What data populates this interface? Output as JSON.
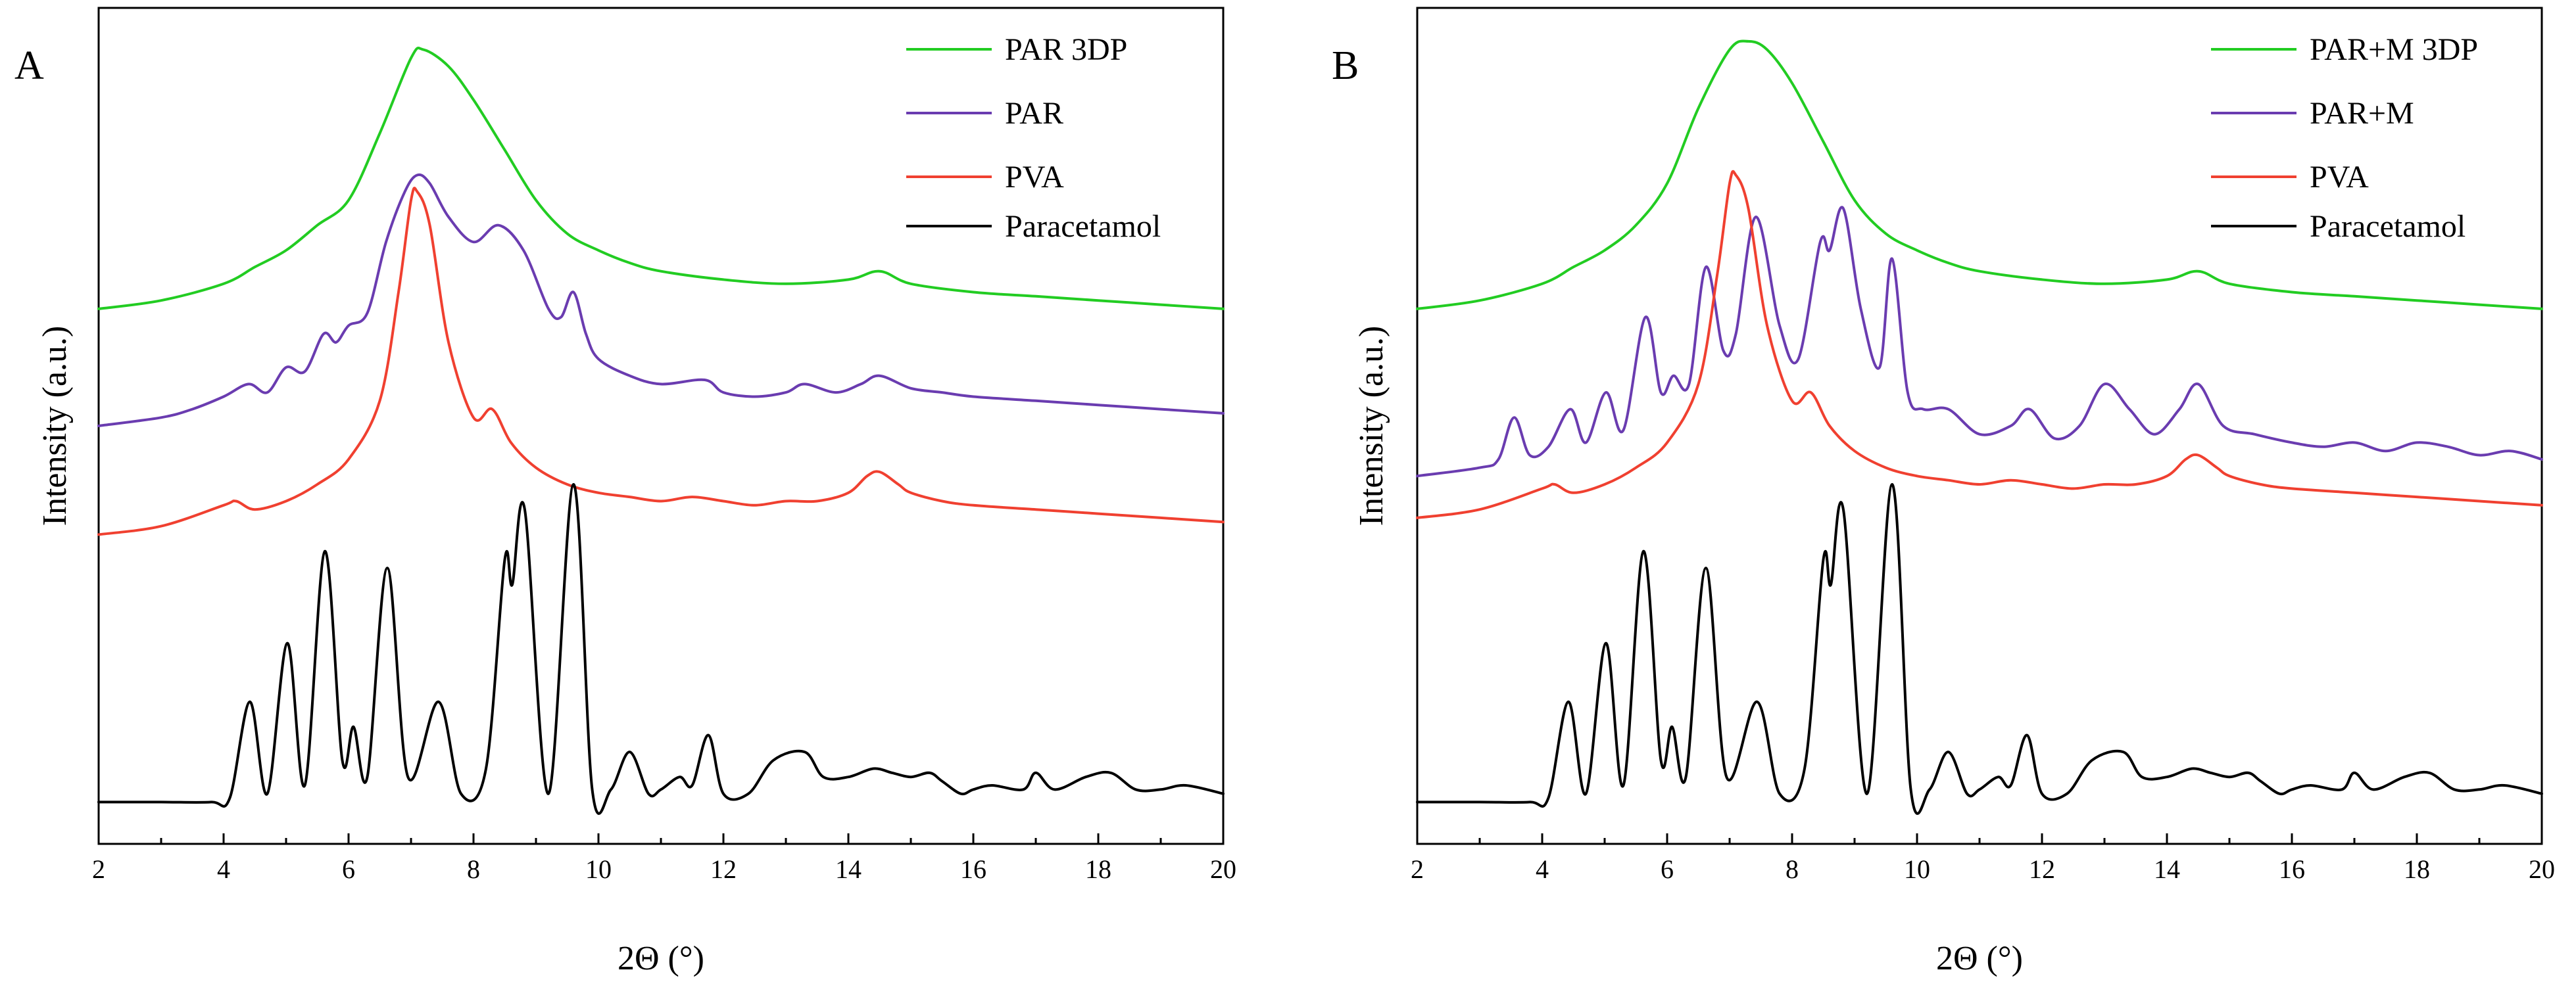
{
  "chart_data": [
    {
      "panel": "A",
      "type": "line",
      "xlabel": "2Θ (°)",
      "ylabel": "Intensity (a.u.)",
      "xlim": [
        2,
        20
      ],
      "ylim": [
        0,
        100
      ],
      "xticks": [
        2,
        4,
        6,
        8,
        10,
        12,
        14,
        16,
        18,
        20
      ],
      "y_ticks_shown": false,
      "legend_position": "top-right",
      "series": [
        {
          "name": "PAR 3DP",
          "color": "#22cc22",
          "x": [
            2,
            3,
            4,
            4.5,
            5,
            5.5,
            6,
            6.5,
            7,
            7.2,
            7.6,
            8,
            8.5,
            9,
            9.5,
            10,
            10.5,
            11,
            12,
            13,
            14,
            14.5,
            15,
            16,
            17,
            18,
            19,
            20
          ],
          "y": [
            64,
            65,
            67,
            69,
            71,
            74,
            77,
            85,
            94,
            95,
            93,
            89,
            83,
            77,
            73,
            71,
            69.5,
            68.5,
            67.5,
            67,
            67.5,
            68.5,
            67,
            66,
            65.5,
            65,
            64.5,
            64
          ]
        },
        {
          "name": "PAR",
          "color": "#6a3cb0",
          "x": [
            2,
            3,
            3.5,
            4,
            4.4,
            4.7,
            5,
            5.3,
            5.6,
            5.8,
            6,
            6.3,
            6.6,
            6.9,
            7.1,
            7.3,
            7.6,
            8,
            8.4,
            8.8,
            9.2,
            9.4,
            9.6,
            9.8,
            10,
            10.5,
            11,
            11.7,
            12,
            12.5,
            13,
            13.3,
            13.8,
            14.2,
            14.5,
            15,
            15.5,
            16,
            17,
            18,
            19,
            20
          ],
          "y": [
            50,
            51,
            52,
            53.5,
            55,
            54,
            57,
            56.5,
            61,
            60,
            62,
            63.5,
            72,
            78,
            80,
            79,
            75,
            72,
            74,
            71,
            64,
            63,
            66,
            61,
            58,
            56,
            55,
            55.5,
            54,
            53.5,
            54,
            55,
            54,
            55,
            56,
            54.5,
            54,
            53.5,
            53,
            52.5,
            52,
            51.5
          ]
        },
        {
          "name": "PVA",
          "color": "#f04030",
          "x": [
            2,
            3,
            4,
            4.2,
            4.5,
            5,
            5.5,
            6,
            6.5,
            6.8,
            7,
            7.1,
            7.3,
            7.6,
            8,
            8.3,
            8.6,
            9,
            9.5,
            10,
            10.5,
            11,
            11.5,
            12,
            12.5,
            13,
            13.5,
            14,
            14.3,
            14.5,
            14.8,
            15,
            15.5,
            16,
            17,
            18,
            19,
            20
          ],
          "y": [
            37,
            38,
            40.5,
            41,
            40,
            41,
            43,
            46,
            53,
            66,
            77,
            78,
            74,
            60,
            51,
            52,
            48,
            45,
            43,
            42,
            41.5,
            41,
            41.5,
            41,
            40.5,
            41,
            41,
            42,
            44,
            44.5,
            43,
            42,
            41,
            40.5,
            40,
            39.5,
            39,
            38.5
          ]
        },
        {
          "name": "Paracetamol",
          "color": "#000000",
          "x": [
            2,
            3,
            3.8,
            4.1,
            4.42,
            4.7,
            5.02,
            5.3,
            5.62,
            5.9,
            6.08,
            6.3,
            6.62,
            6.95,
            7.44,
            7.8,
            8.2,
            8.5,
            8.62,
            8.82,
            9.2,
            9.6,
            9.9,
            10.2,
            10.5,
            10.8,
            11,
            11.3,
            11.5,
            11.76,
            12,
            12.4,
            12.8,
            13.3,
            13.6,
            14,
            14.4,
            14.7,
            15,
            15.3,
            15.5,
            15.8,
            16,
            16.3,
            16.8,
            17,
            17.3,
            17.8,
            18.2,
            18.6,
            19,
            19.4,
            20
          ],
          "y": [
            5,
            5,
            5,
            5.5,
            17,
            6,
            24,
            7,
            35,
            10,
            14,
            8,
            33,
            8,
            17,
            6,
            9,
            34,
            31,
            40,
            6,
            43,
            6.5,
            6.5,
            11,
            6,
            6.5,
            8,
            7,
            13,
            6,
            6,
            10,
            11,
            8,
            8,
            9,
            8.5,
            8,
            8.5,
            7.5,
            6,
            6.5,
            7,
            6.5,
            8.5,
            6.5,
            8,
            8.5,
            6.5,
            6.5,
            7,
            6
          ]
        }
      ]
    },
    {
      "panel": "B",
      "type": "line",
      "xlabel": "2Θ (°)",
      "ylabel": "Intensity (a.u.)",
      "xlim": [
        2,
        20
      ],
      "ylim": [
        0,
        100
      ],
      "xticks": [
        2,
        4,
        6,
        8,
        10,
        12,
        14,
        16,
        18,
        20
      ],
      "y_ticks_shown": false,
      "legend_position": "top-right",
      "series": [
        {
          "name": "PAR+M 3DP",
          "color": "#22cc22",
          "x": [
            2,
            3,
            4,
            4.5,
            5,
            5.5,
            6,
            6.5,
            7,
            7.3,
            7.6,
            8,
            8.5,
            9,
            9.5,
            10,
            10.5,
            11,
            12,
            13,
            14,
            14.5,
            15,
            16,
            17,
            18,
            19,
            20
          ],
          "y": [
            64,
            65,
            67,
            69,
            71,
            74,
            79,
            88,
            95,
            96,
            95,
            91,
            84,
            77,
            73,
            71,
            69.5,
            68.5,
            67.5,
            67,
            67.5,
            68.5,
            67,
            66,
            65.5,
            65,
            64.5,
            64
          ]
        },
        {
          "name": "PAR+M",
          "color": "#6a3cb0",
          "x": [
            2,
            3,
            3.3,
            3.55,
            3.8,
            4.1,
            4.45,
            4.7,
            5.02,
            5.3,
            5.65,
            5.9,
            6.1,
            6.35,
            6.62,
            6.9,
            7.1,
            7.42,
            7.8,
            8.1,
            8.45,
            8.6,
            8.82,
            9.1,
            9.4,
            9.6,
            9.85,
            10.1,
            10.5,
            11,
            11.5,
            11.8,
            12.2,
            12.6,
            13,
            13.4,
            13.8,
            14.2,
            14.5,
            14.9,
            15.4,
            16,
            16.5,
            17,
            17.5,
            18,
            18.5,
            19,
            19.5,
            20
          ],
          "y": [
            44,
            45,
            46,
            51,
            46.5,
            47.5,
            52,
            48,
            54,
            49.5,
            63,
            54,
            56,
            55,
            69,
            59,
            61,
            75,
            62,
            58,
            72,
            71,
            76,
            64,
            57,
            70,
            54,
            52,
            52,
            49,
            50,
            52,
            48.5,
            50,
            55,
            52,
            49,
            52,
            55,
            50,
            49,
            48,
            47.5,
            48,
            47,
            48,
            47.5,
            46.5,
            47,
            46
          ]
        },
        {
          "name": "PVA",
          "color": "#f04030",
          "x": [
            2,
            3,
            4,
            4.2,
            4.5,
            5,
            5.5,
            6,
            6.5,
            6.8,
            7,
            7.1,
            7.3,
            7.6,
            8,
            8.3,
            8.6,
            9,
            9.5,
            10,
            10.5,
            11,
            11.5,
            12,
            12.5,
            13,
            13.5,
            14,
            14.3,
            14.5,
            14.8,
            15,
            15.5,
            16,
            17,
            18,
            19,
            20
          ],
          "y": [
            39,
            40,
            42.5,
            43,
            42,
            43,
            45,
            48,
            55,
            68,
            79,
            80,
            76,
            62,
            53,
            54,
            50,
            47,
            45,
            44,
            43.5,
            43,
            43.5,
            43,
            42.5,
            43,
            43,
            44,
            46,
            46.5,
            45,
            44,
            43,
            42.5,
            42,
            41.5,
            41,
            40.5
          ]
        },
        {
          "name": "Paracetamol",
          "color": "#000000",
          "x": [
            2,
            3,
            3.8,
            4.1,
            4.42,
            4.7,
            5.02,
            5.3,
            5.62,
            5.9,
            6.08,
            6.3,
            6.62,
            6.95,
            7.44,
            7.8,
            8.2,
            8.5,
            8.62,
            8.82,
            9.2,
            9.6,
            9.9,
            10.2,
            10.5,
            10.8,
            11,
            11.3,
            11.5,
            11.76,
            12,
            12.4,
            12.8,
            13.3,
            13.6,
            14,
            14.4,
            14.7,
            15,
            15.3,
            15.5,
            15.8,
            16,
            16.3,
            16.8,
            17,
            17.3,
            17.8,
            18.2,
            18.6,
            19,
            19.4,
            20
          ],
          "y": [
            5,
            5,
            5,
            5.5,
            17,
            6,
            24,
            7,
            35,
            10,
            14,
            8,
            33,
            8,
            17,
            6,
            9,
            34,
            31,
            40,
            6,
            43,
            6.5,
            6.5,
            11,
            6,
            6.5,
            8,
            7,
            13,
            6,
            6,
            10,
            11,
            8,
            8,
            9,
            8.5,
            8,
            8.5,
            7.5,
            6,
            6.5,
            7,
            6.5,
            8.5,
            6.5,
            8,
            8.5,
            6.5,
            6.5,
            7,
            6
          ]
        }
      ]
    }
  ]
}
